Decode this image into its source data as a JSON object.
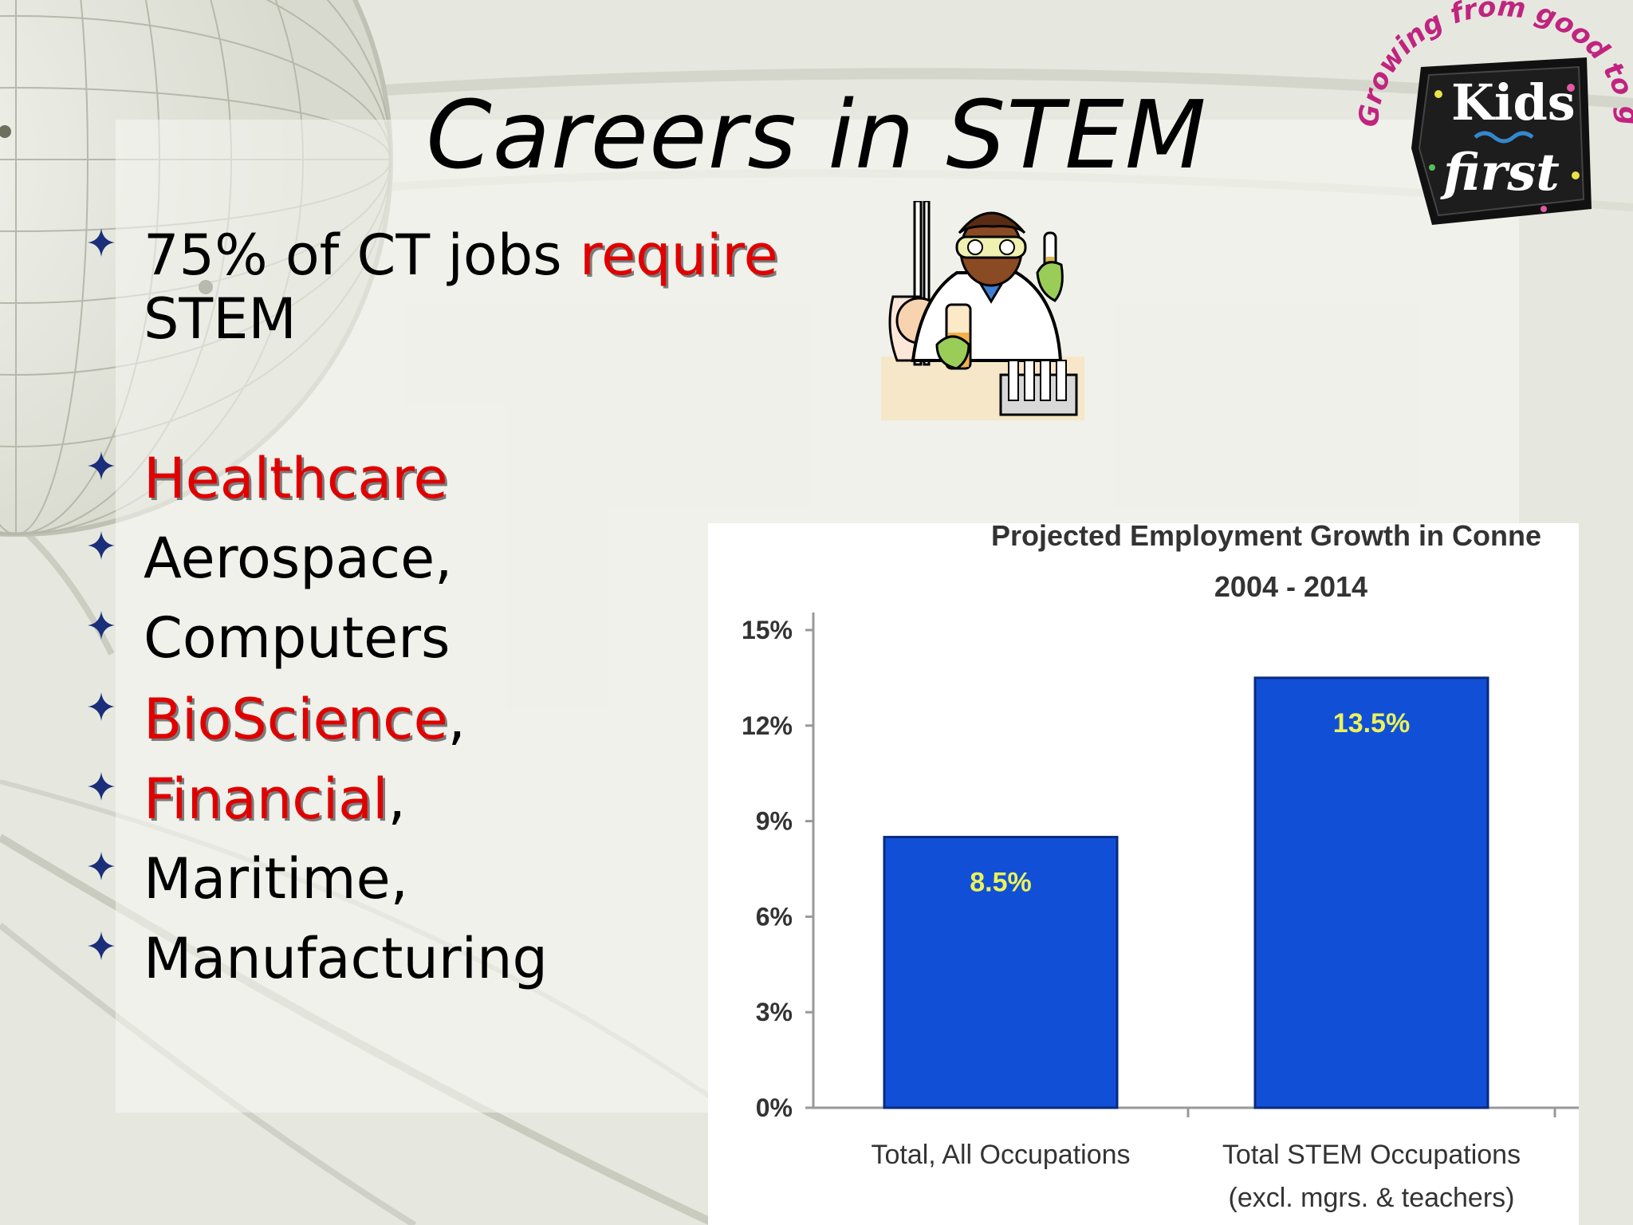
{
  "slide": {
    "title": "Careers in STEM",
    "bullets": [
      {
        "parts": [
          {
            "text": "75% of CT jobs ",
            "red": false
          },
          {
            "text": "require",
            "red": true
          }
        ],
        "line2": "STEM"
      },
      {
        "parts": [
          {
            "text": "Healthcare",
            "red": true
          }
        ]
      },
      {
        "parts": [
          {
            "text": "Aerospace,",
            "red": false
          }
        ]
      },
      {
        "parts": [
          {
            "text": "Computers",
            "red": false
          }
        ]
      },
      {
        "parts": [
          {
            "text": "BioScience",
            "red": true
          },
          {
            "text": ",",
            "red": false
          }
        ]
      },
      {
        "parts": [
          {
            "text": "Financial",
            "red": true
          },
          {
            "text": ",",
            "red": false
          }
        ]
      },
      {
        "parts": [
          {
            "text": "Maritime,",
            "red": false
          }
        ]
      },
      {
        "parts": [
          {
            "text": "Manufacturing",
            "red": false
          }
        ]
      }
    ]
  },
  "logo": {
    "arc_text": "Growing from good to great",
    "line1": "Kids",
    "line2": "first"
  },
  "images": {
    "scientist": "scientist-clipart"
  },
  "colors": {
    "accent_red": "#e00000",
    "bullet_marker": "#1a2e7a",
    "bar_fill": "#1150d6",
    "data_label": "#ecf25a",
    "logo_magenta": "#c0247f"
  },
  "chart_data": {
    "type": "bar",
    "title": "Projected Employment Growth in Conne",
    "subtitle": "2004 - 2014",
    "categories": [
      [
        "Total, All Occupations"
      ],
      [
        "Total STEM Occupations",
        "(excl. mgrs. & teachers)"
      ]
    ],
    "values": [
      8.5,
      13.5
    ],
    "data_labels": [
      "8.5%",
      "13.5%"
    ],
    "ylim": [
      0,
      15
    ],
    "yticks": [
      0,
      3,
      6,
      9,
      12,
      15
    ],
    "ytick_labels": [
      "0%",
      "3%",
      "6%",
      "9%",
      "12%",
      "15%"
    ],
    "grid": false,
    "legend": "none"
  }
}
